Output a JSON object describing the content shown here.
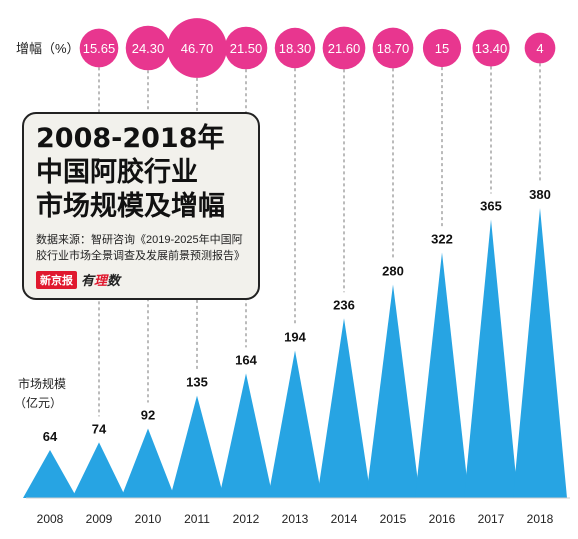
{
  "card": {
    "title": "2008-2018年\n中国阿胶行业\n市场规模及增幅",
    "source": "数据来源：智研咨询《2019-2025年中国阿胶行业市场全景调查及发展前景预测报告》",
    "logo_box": "新京报",
    "logo_text_a": "有",
    "logo_text_b": "理",
    "logo_text_c": "数"
  },
  "colors": {
    "triangle": "#27a4e3",
    "bubble": "#e8368f",
    "dash": "#777777"
  },
  "chart_data": {
    "type": "area",
    "x": [
      "2008",
      "2009",
      "2010",
      "2011",
      "2012",
      "2013",
      "2014",
      "2015",
      "2016",
      "2017",
      "2018"
    ],
    "series": [
      {
        "name": "市场规模",
        "values": [
          64,
          74,
          92,
          135,
          164,
          194,
          236,
          280,
          322,
          365,
          380
        ]
      },
      {
        "name": "增幅",
        "values": [
          "",
          "15.65",
          "24.30",
          "46.70",
          "21.50",
          "18.30",
          "21.60",
          "18.70",
          "15",
          "13.40",
          "4"
        ]
      }
    ],
    "ylabel_size": "市场规模",
    "ylabel_size_unit": "（亿元）",
    "ylabel_growth": "增幅（%）"
  }
}
